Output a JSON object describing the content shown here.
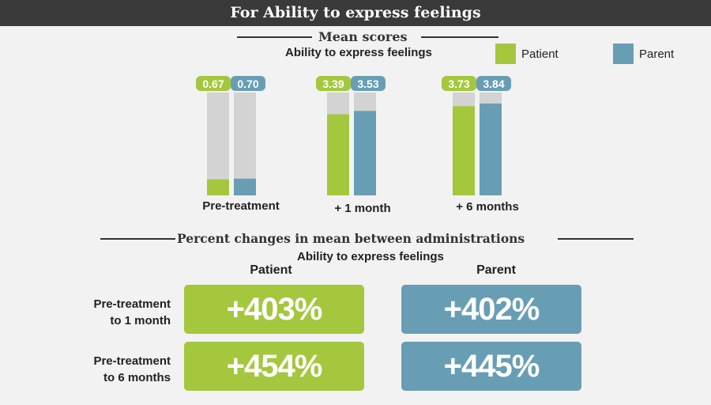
{
  "header": {
    "title": "For Ability to express feelings"
  },
  "mean_section": {
    "heading": "Mean scores",
    "subtitle": "Ability to express feelings"
  },
  "legend": [
    {
      "label": "Patient",
      "color": "#a4c73e"
    },
    {
      "label": "Parent",
      "color": "#689eb4"
    }
  ],
  "chart_data": {
    "type": "bar",
    "title": "Mean scores",
    "subtitle": "Ability to express feelings",
    "categories": [
      "Pre-treatment",
      "+ 1 month",
      "+ 6 months"
    ],
    "series": [
      {
        "name": "Patient",
        "color": "#a4c73e",
        "values": [
          0.67,
          3.39,
          3.73
        ],
        "labels": [
          "0.67",
          "3.39",
          "3.73"
        ]
      },
      {
        "name": "Parent",
        "color": "#689eb4",
        "values": [
          0.7,
          3.53,
          3.84
        ],
        "labels": [
          "0.70",
          "3.53",
          "3.84"
        ]
      }
    ],
    "ylim": [
      0,
      4.3
    ],
    "background_bar_color": "#d3d3d3",
    "legend_position": "top-right"
  },
  "percent_section": {
    "heading": "Percent changes in mean between administrations",
    "subtitle": "Ability to express feelings",
    "columns": [
      "Patient",
      "Parent"
    ],
    "rows": [
      {
        "label_line1": "Pre-treatment",
        "label_line2": "to 1 month",
        "patient": "+403%",
        "parent": "+402%"
      },
      {
        "label_line1": "Pre-treatment",
        "label_line2": "to 6 months",
        "patient": "+454%",
        "parent": "+445%"
      }
    ]
  }
}
